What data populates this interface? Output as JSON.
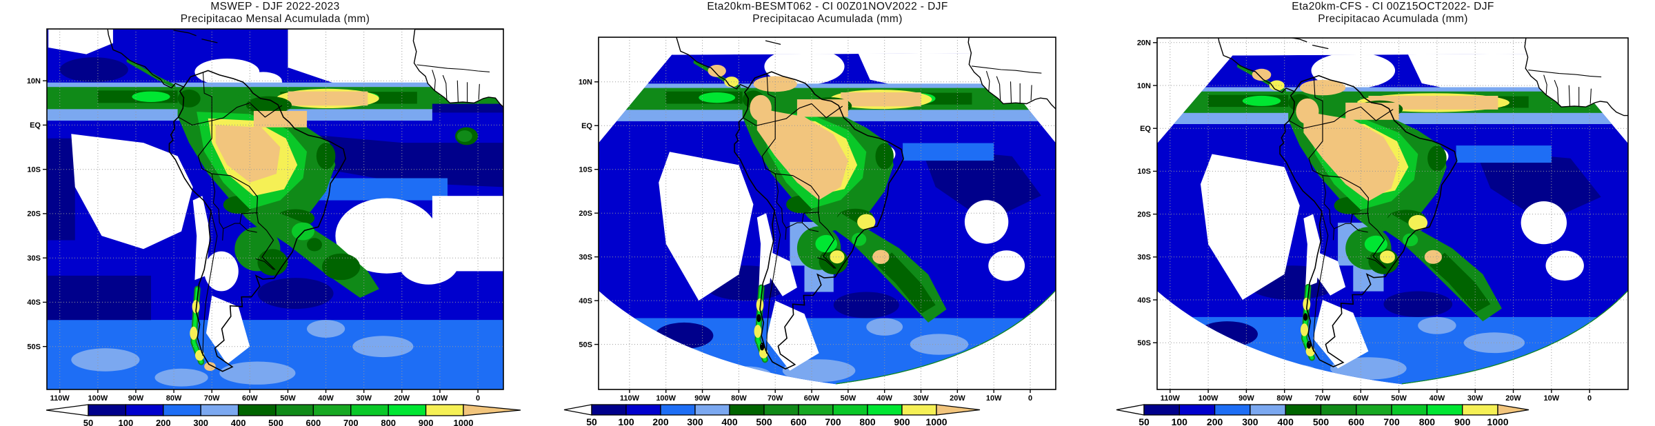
{
  "figure": {
    "background": "#FFFFFF"
  },
  "panels": [
    {
      "id": "mswep",
      "title_line1": "MSWEP - DJF 2022-2023",
      "title_line2": "Precipitacao Mensal Acumulada (mm)",
      "lat_tick_labels": [
        "10N",
        "EQ",
        "10S",
        "20S",
        "30S",
        "40S",
        "50S"
      ],
      "lon_tick_labels": [
        "110W",
        "100W",
        "90W",
        "80W",
        "70W",
        "60W",
        "50W",
        "40W",
        "30W",
        "20W",
        "10W",
        "0"
      ]
    },
    {
      "id": "eta20km-besmt062",
      "title_line1": "Eta20km-BESMT062 - CI 00Z01NOV2022 - DJF",
      "title_line2": "Precipitacao Acumulada (mm)",
      "lat_tick_labels": [
        "10N",
        "EQ",
        "10S",
        "20S",
        "30S",
        "40S",
        "50S"
      ],
      "lon_tick_labels": [
        "110W",
        "100W",
        "90W",
        "80W",
        "70W",
        "60W",
        "50W",
        "40W",
        "30W",
        "20W",
        "10W",
        "0"
      ]
    },
    {
      "id": "eta20km-cfs",
      "title_line1": "Eta20km-CFS - CI 00Z15OCT2022- DJF",
      "title_line2": "Precipitacao Acumulada (mm)",
      "lat_tick_labels": [
        "20N",
        "10N",
        "EQ",
        "10S",
        "20S",
        "30S",
        "40S",
        "50S"
      ],
      "lon_tick_labels": [
        "110W",
        "100W",
        "90W",
        "80W",
        "70W",
        "60W",
        "50W",
        "40W",
        "30W",
        "20W",
        "10W",
        "0"
      ]
    }
  ],
  "colorbar": {
    "tick_labels": [
      "50",
      "100",
      "200",
      "300",
      "400",
      "500",
      "600",
      "700",
      "800",
      "900",
      "1000"
    ],
    "cell_colors": [
      "#00008B",
      "#0000CD",
      "#1E6EF5",
      "#7BA8F0",
      "#006400",
      "#108A18",
      "#17A822",
      "#0AC828",
      "#00E632",
      "#F5F055"
    ],
    "below_min_color": "#FFFFFF",
    "above_max_color": "#F2C57D",
    "outline_color": "#000000"
  },
  "chart_data": [
    {
      "type": "heatmap",
      "title": "MSWEP - DJF 2022-2023",
      "subtitle": "Precipitacao Mensal Acumulada (mm)",
      "variable": "accumulated precipitation",
      "units": "mm",
      "x_tick_labels": [
        "110W",
        "100W",
        "90W",
        "80W",
        "70W",
        "60W",
        "50W",
        "40W",
        "30W",
        "20W",
        "10W",
        "0"
      ],
      "y_tick_labels": [
        "10N",
        "EQ",
        "10S",
        "20S",
        "30S",
        "40S",
        "50S"
      ],
      "colorbar_levels_mm": [
        50,
        100,
        200,
        300,
        400,
        500,
        600,
        700,
        800,
        900,
        1000
      ],
      "colorbar_colors": [
        "#00008B",
        "#0000CD",
        "#1E6EF5",
        "#7BA8F0",
        "#006400",
        "#108A18",
        "#17A822",
        "#0AC828",
        "#00E632",
        "#F5F055"
      ],
      "below_min_color": "#FFFFFF",
      "above_max_color": "#F2C57D",
      "legend_position": "bottom",
      "grid": true
    },
    {
      "type": "heatmap",
      "title": "Eta20km-BESMT062 - CI 00Z01NOV2022 - DJF",
      "subtitle": "Precipitacao Acumulada (mm)",
      "variable": "accumulated precipitation",
      "units": "mm",
      "x_tick_labels": [
        "110W",
        "100W",
        "90W",
        "80W",
        "70W",
        "60W",
        "50W",
        "40W",
        "30W",
        "20W",
        "10W",
        "0"
      ],
      "y_tick_labels": [
        "10N",
        "EQ",
        "10S",
        "20S",
        "30S",
        "40S",
        "50S"
      ],
      "colorbar_levels_mm": [
        50,
        100,
        200,
        300,
        400,
        500,
        600,
        700,
        800,
        900,
        1000
      ],
      "colorbar_colors": [
        "#00008B",
        "#0000CD",
        "#1E6EF5",
        "#7BA8F0",
        "#006400",
        "#108A18",
        "#17A822",
        "#0AC828",
        "#00E632",
        "#F5F055"
      ],
      "below_min_color": "#FFFFFF",
      "above_max_color": "#F2C57D",
      "legend_position": "bottom",
      "grid": true
    },
    {
      "type": "heatmap",
      "title": "Eta20km-CFS - CI 00Z15OCT2022- DJF",
      "subtitle": "Precipitacao Acumulada (mm)",
      "variable": "accumulated precipitation",
      "units": "mm",
      "x_tick_labels": [
        "110W",
        "100W",
        "90W",
        "80W",
        "70W",
        "60W",
        "50W",
        "40W",
        "30W",
        "20W",
        "10W",
        "0"
      ],
      "y_tick_labels": [
        "20N",
        "10N",
        "EQ",
        "10S",
        "20S",
        "30S",
        "40S",
        "50S"
      ],
      "colorbar_levels_mm": [
        50,
        100,
        200,
        300,
        400,
        500,
        600,
        700,
        800,
        900,
        1000
      ],
      "colorbar_colors": [
        "#00008B",
        "#0000CD",
        "#1E6EF5",
        "#7BA8F0",
        "#006400",
        "#108A18",
        "#17A822",
        "#0AC828",
        "#00E632",
        "#F5F055"
      ],
      "below_min_color": "#FFFFFF",
      "above_max_color": "#F2C57D",
      "legend_position": "bottom",
      "grid": true
    }
  ]
}
